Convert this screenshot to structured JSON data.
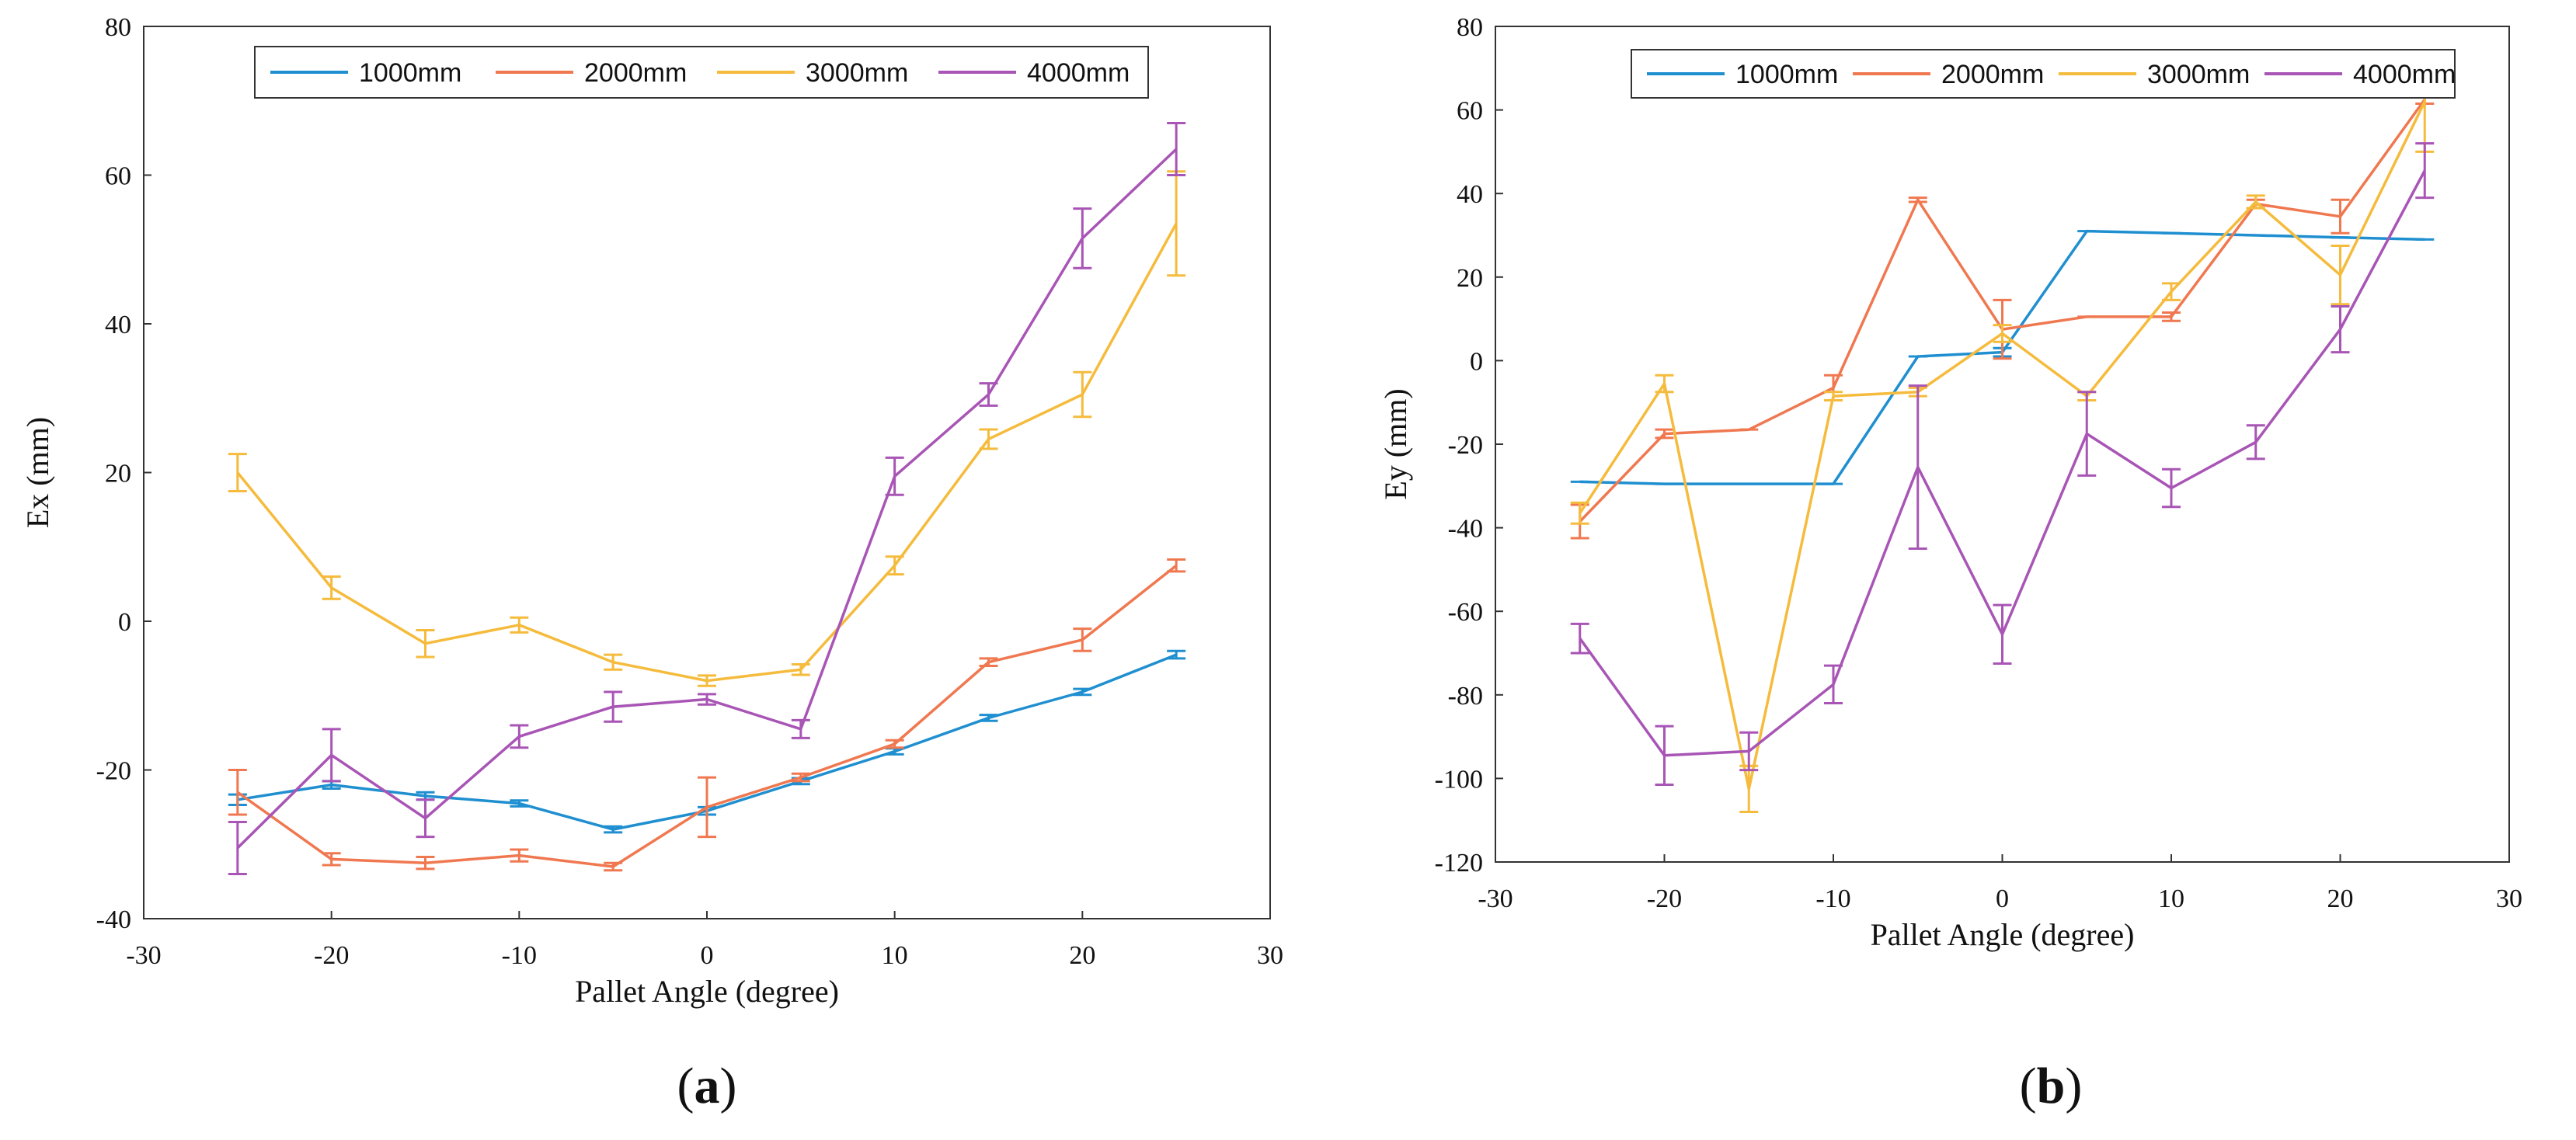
{
  "chart_data": [
    {
      "type": "line",
      "caption": {
        "open": "(",
        "letter": "a",
        "close": ")"
      },
      "xlabel": "Pallet Angle (degree)",
      "ylabel": "Ex (mm)",
      "xlim": [
        -30,
        30
      ],
      "ylim": [
        -40,
        80
      ],
      "xticks": [
        -30,
        -20,
        -10,
        0,
        10,
        20,
        30
      ],
      "yticks": [
        -40,
        -20,
        0,
        20,
        40,
        60,
        80
      ],
      "ytick_labels": [
        "-40",
        "-20",
        "0",
        "20",
        "40",
        "60",
        "80"
      ],
      "grid": false,
      "legend": "top",
      "x": [
        -25,
        -20,
        -15,
        -10,
        -5,
        0,
        5,
        10,
        15,
        20,
        25
      ],
      "series": [
        {
          "name": "1000mm",
          "color": "#1f8fd0",
          "values": [
            -24,
            -22,
            -23.5,
            -24.5,
            -28,
            -25.5,
            -21.5,
            -17.5,
            -13,
            -9.5,
            -4.5
          ],
          "errors": [
            0.7,
            0.5,
            0.5,
            0.4,
            0.4,
            0.5,
            0.4,
            0.4,
            0.4,
            0.4,
            0.5
          ]
        },
        {
          "name": "2000mm",
          "color": "#f07850",
          "values": [
            -23,
            -32,
            -32.5,
            -31.5,
            -33,
            -25,
            -21,
            -16.5,
            -5.5,
            -2.5,
            7.5
          ],
          "errors": [
            3.0,
            0.8,
            0.8,
            0.8,
            0.5,
            4.0,
            0.5,
            0.5,
            0.5,
            1.5,
            0.8
          ]
        },
        {
          "name": "3000mm",
          "color": "#f5bb3c",
          "values": [
            20,
            4.5,
            -3,
            -0.5,
            -5.5,
            -8,
            -6.5,
            7.5,
            24.5,
            30.5,
            53.5
          ],
          "errors": [
            2.5,
            1.5,
            1.8,
            1.0,
            1.0,
            0.7,
            0.7,
            1.2,
            1.3,
            3.0,
            7.0
          ]
        },
        {
          "name": "4000mm",
          "color": "#a855b5",
          "values": [
            -30.5,
            -18,
            -26.5,
            -15.5,
            -11.5,
            -10.5,
            -14.5,
            19.5,
            30.5,
            51.5,
            63.5
          ],
          "errors": [
            3.5,
            3.5,
            2.5,
            1.5,
            2.0,
            0.7,
            1.2,
            2.5,
            1.5,
            4.0,
            3.5
          ]
        }
      ]
    },
    {
      "type": "line",
      "caption": {
        "open": "(",
        "letter": "b",
        "close": ")"
      },
      "xlabel": "Pallet Angle (degree)",
      "ylabel": "Ey (mm)",
      "xlim": [
        -30,
        30
      ],
      "ylim": [
        -120,
        80
      ],
      "xticks": [
        -30,
        -20,
        -10,
        0,
        10,
        20,
        30
      ],
      "yticks": [
        -120,
        -100,
        -80,
        -60,
        -40,
        -20,
        0,
        20,
        40,
        60,
        80
      ],
      "ytick_labels": [
        "-120",
        "-100",
        "-80",
        "-60",
        "-40",
        "-20",
        "0",
        "20",
        "40",
        "60",
        "80"
      ],
      "grid": false,
      "legend": "top",
      "x": [
        -25,
        -20,
        -15,
        -10,
        -5,
        0,
        5,
        10,
        15,
        20,
        25
      ],
      "series": [
        {
          "name": "1000mm",
          "color": "#1f8fd0",
          "values": [
            -29,
            -29.5,
            -29.5,
            -29.5,
            1,
            2,
            31,
            30.5,
            30,
            29.5,
            29
          ],
          "errors": [
            0,
            0,
            0,
            0,
            0,
            1.0,
            0,
            0,
            0,
            0,
            0
          ]
        },
        {
          "name": "2000mm",
          "color": "#f07850",
          "values": [
            -38.5,
            -17.5,
            -16.5,
            -6.5,
            38.5,
            7.5,
            10.5,
            10.5,
            37.5,
            34.5,
            62.5
          ],
          "errors": [
            4.0,
            1.0,
            0,
            3.0,
            0.5,
            7.0,
            0,
            1.0,
            1.0,
            4.0,
            1.0
          ]
        },
        {
          "name": "3000mm",
          "color": "#f5bb3c",
          "values": [
            -36.5,
            -5.5,
            -102.5,
            -8.5,
            -7.5,
            6.5,
            -8.5,
            16.5,
            38,
            20.5,
            62
          ],
          "errors": [
            2.5,
            2.0,
            5.5,
            1.0,
            1.0,
            2.0,
            1.0,
            2.0,
            1.5,
            7.0,
            12.0
          ]
        },
        {
          "name": "4000mm",
          "color": "#a855b5",
          "values": [
            -66.5,
            -94.5,
            -93.5,
            -77.5,
            -25.5,
            -65.5,
            -17.5,
            -30.5,
            -19.5,
            7.5,
            45.5
          ],
          "errors": [
            3.5,
            7.0,
            4.5,
            4.5,
            19.5,
            7.0,
            10.0,
            4.5,
            4.0,
            5.5,
            6.5
          ]
        }
      ]
    }
  ]
}
